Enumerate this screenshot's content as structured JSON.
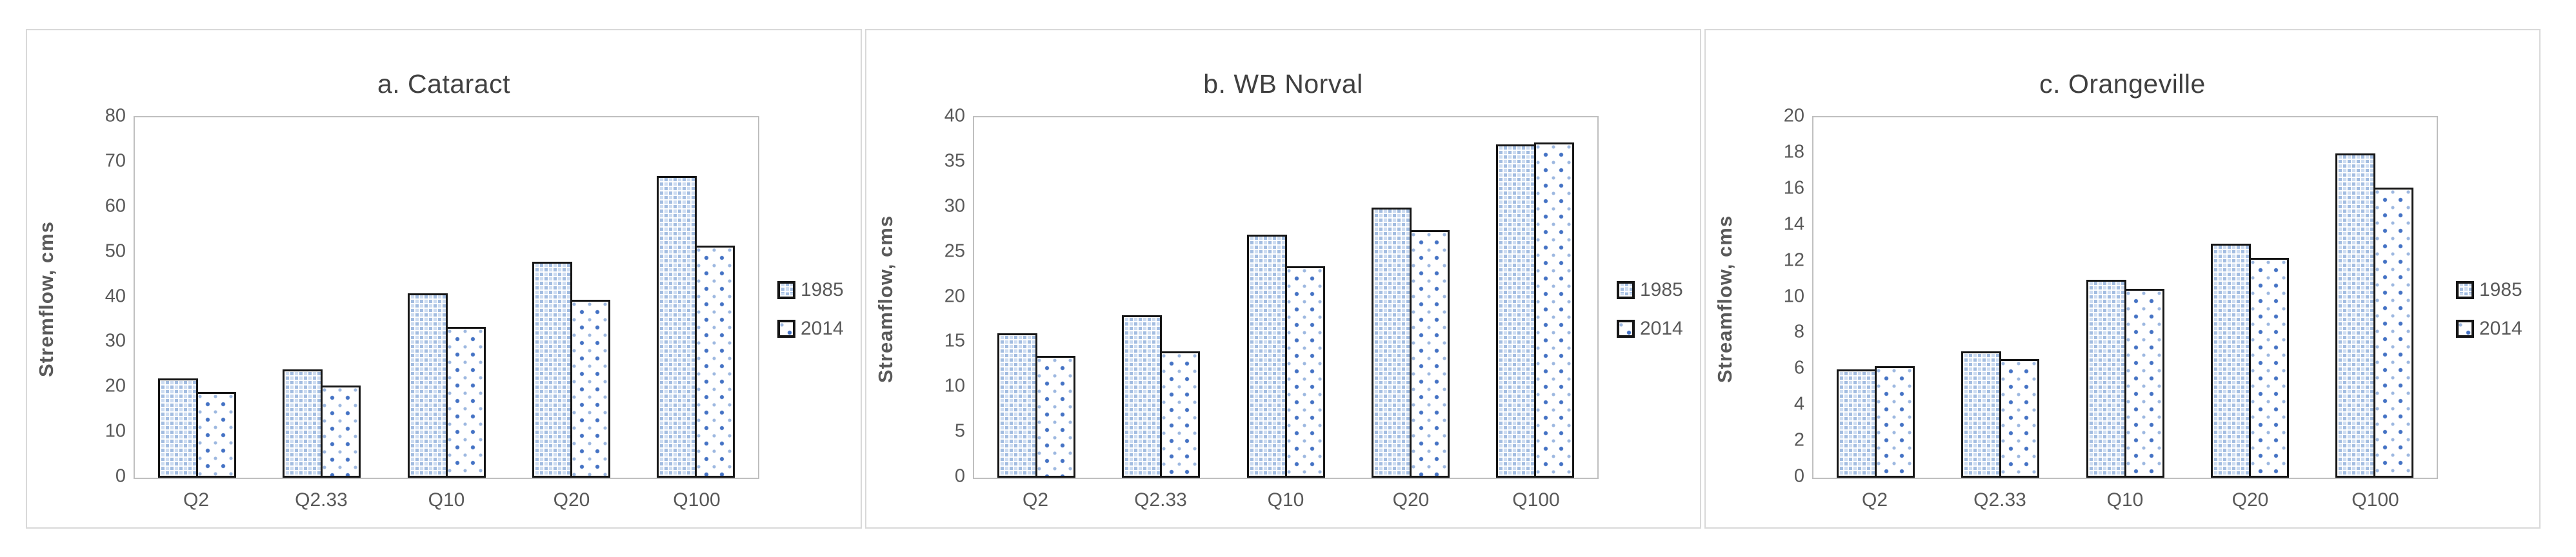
{
  "figure": {
    "background": "#ffffff",
    "panel_border_color": "#d9d9d9",
    "plot_border_color": "#bfbfbf",
    "title_color": "#404040",
    "text_color": "#595959",
    "bar_border_color": "#151515",
    "bar_1985_fill": "#b6cbe8",
    "bar_2014_dot_color": "#4472c4"
  },
  "chart_data": [
    {
      "type": "bar",
      "title": "a. Cataract",
      "ylabel": "Stremflow, cms",
      "xlabel": "",
      "categories": [
        "Q2",
        "Q2.33",
        "Q10",
        "Q20",
        "Q100"
      ],
      "series": [
        {
          "name": "1985",
          "values": [
            22,
            24,
            41,
            48,
            67
          ]
        },
        {
          "name": "2014",
          "values": [
            19,
            20.5,
            33.5,
            39.5,
            51.5
          ]
        }
      ],
      "ylim": [
        0,
        80
      ],
      "yticks": [
        0,
        10,
        20,
        30,
        40,
        50,
        60,
        70,
        80
      ],
      "grid": false,
      "legend_position": "right"
    },
    {
      "type": "bar",
      "title": "b. WB Norval",
      "ylabel": "Streamflow, cms",
      "xlabel": "",
      "categories": [
        "Q2",
        "Q2.33",
        "Q10",
        "Q20",
        "Q100"
      ],
      "series": [
        {
          "name": "1985",
          "values": [
            16,
            18,
            27,
            30,
            37
          ]
        },
        {
          "name": "2014",
          "values": [
            13.5,
            14,
            23.5,
            27.5,
            37.2
          ]
        }
      ],
      "ylim": [
        0,
        40
      ],
      "yticks": [
        0,
        5,
        10,
        15,
        20,
        25,
        30,
        35,
        40
      ],
      "grid": false,
      "legend_position": "right"
    },
    {
      "type": "bar",
      "title": "c. Orangeville",
      "ylabel": "Streamflow, cms",
      "xlabel": "",
      "categories": [
        "Q2",
        "Q2.33",
        "Q10",
        "Q20",
        "Q100"
      ],
      "series": [
        {
          "name": "1985",
          "values": [
            6,
            7,
            11,
            13,
            18
          ]
        },
        {
          "name": "2014",
          "values": [
            6.2,
            6.6,
            10.5,
            12.2,
            16.1
          ]
        }
      ],
      "ylim": [
        0,
        20
      ],
      "yticks": [
        0,
        2,
        4,
        6,
        8,
        10,
        12,
        14,
        16,
        18,
        20
      ],
      "grid": false,
      "legend_position": "right"
    }
  ]
}
